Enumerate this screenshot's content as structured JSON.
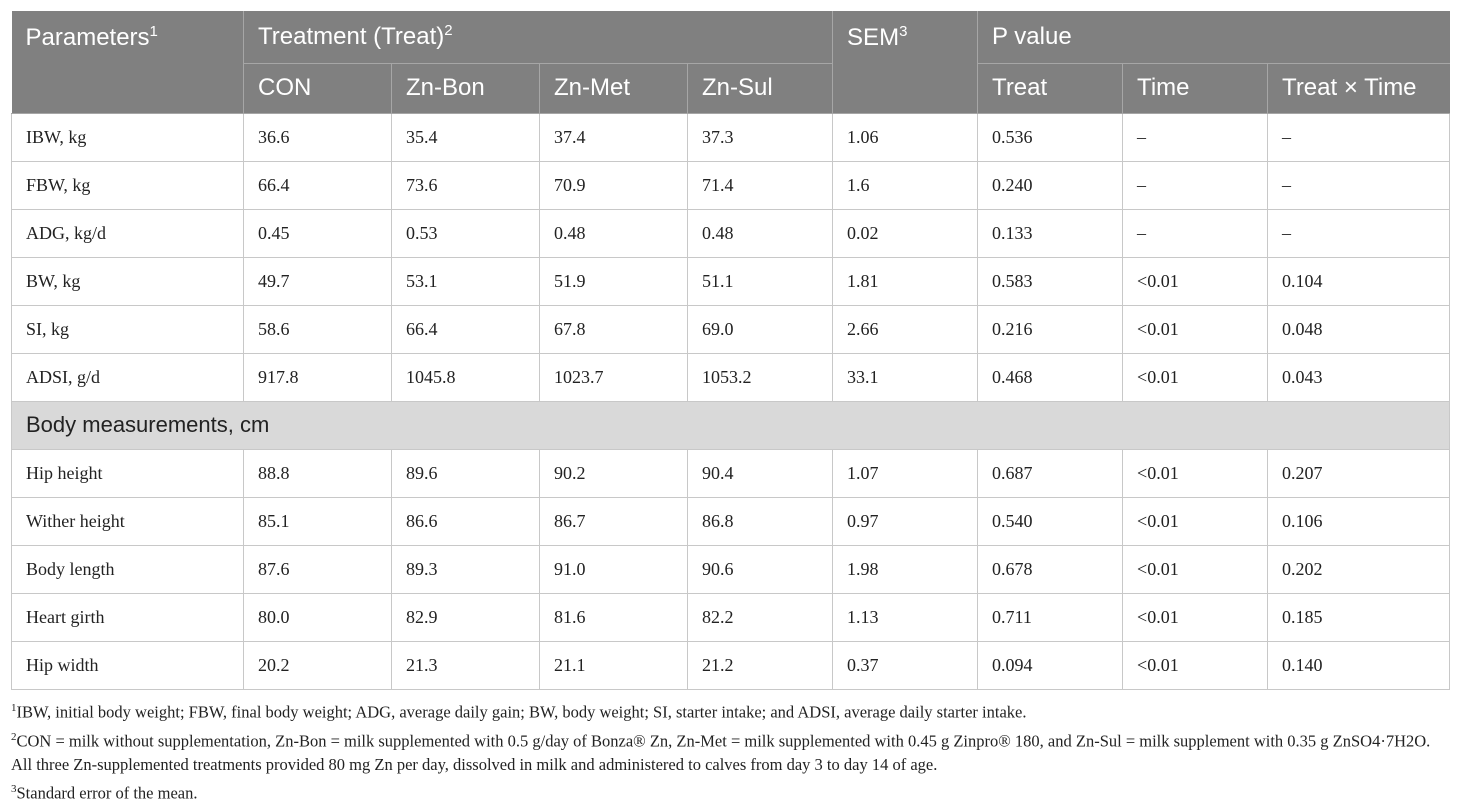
{
  "header": {
    "parameters": "Parameters",
    "parameters_note": "1",
    "treatment": "Treatment (Treat)",
    "treatment_note": "2",
    "sem": "SEM",
    "sem_note": "3",
    "p_value": "P value",
    "treatments": [
      "CON",
      "Zn-Bon",
      "Zn-Met",
      "Zn-Sul"
    ],
    "p_columns": [
      "Treat",
      "Time",
      "Treat × Time"
    ]
  },
  "rows": [
    [
      "IBW, kg",
      "36.6",
      "35.4",
      "37.4",
      "37.3",
      "1.06",
      "0.536",
      "–",
      "–"
    ],
    [
      "FBW, kg",
      "66.4",
      "73.6",
      "70.9",
      "71.4",
      "1.6",
      "0.240",
      "–",
      "–"
    ],
    [
      "ADG, kg/d",
      "0.45",
      "0.53",
      "0.48",
      "0.48",
      "0.02",
      "0.133",
      "–",
      "–"
    ],
    [
      "BW, kg",
      "49.7",
      "53.1",
      "51.9",
      "51.1",
      "1.81",
      "0.583",
      "<0.01",
      "0.104"
    ],
    [
      "SI, kg",
      "58.6",
      "66.4",
      "67.8",
      "69.0",
      "2.66",
      "0.216",
      "<0.01",
      "0.048"
    ],
    [
      "ADSI, g/d",
      "917.8",
      "1045.8",
      "1023.7",
      "1053.2",
      "33.1",
      "0.468",
      "<0.01",
      "0.043"
    ]
  ],
  "section": "Body measurements, cm",
  "section_rows": [
    [
      "Hip height",
      "88.8",
      "89.6",
      "90.2",
      "90.4",
      "1.07",
      "0.687",
      "<0.01",
      "0.207"
    ],
    [
      "Wither height",
      "85.1",
      "86.6",
      "86.7",
      "86.8",
      "0.97",
      "0.540",
      "<0.01",
      "0.106"
    ],
    [
      "Body length",
      "87.6",
      "89.3",
      "91.0",
      "90.6",
      "1.98",
      "0.678",
      "<0.01",
      "0.202"
    ],
    [
      "Heart girth",
      "80.0",
      "82.9",
      "81.6",
      "82.2",
      "1.13",
      "0.711",
      "<0.01",
      "0.185"
    ],
    [
      "Hip width",
      "20.2",
      "21.3",
      "21.1",
      "21.2",
      "0.37",
      "0.094",
      "<0.01",
      "0.140"
    ]
  ],
  "footnotes": [
    {
      "mark": "1",
      "text": "IBW, initial body weight; FBW, final body weight; ADG, average daily gain; BW, body weight; SI, starter intake; and ADSI, average daily starter intake."
    },
    {
      "mark": "2",
      "text": "CON = milk without supplementation, Zn-Bon = milk supplemented with 0.5 g/day of Bonza® Zn, Zn-Met = milk supplemented with 0.45 g Zinpro® 180, and Zn-Sul = milk supplement with 0.35 g ZnSO4·7H2O. All three Zn-supplemented treatments provided 80 mg Zn per day, dissolved in milk and administered to calves from day 3 to day 14 of age."
    },
    {
      "mark": "3",
      "text": "Standard error of the mean."
    }
  ]
}
